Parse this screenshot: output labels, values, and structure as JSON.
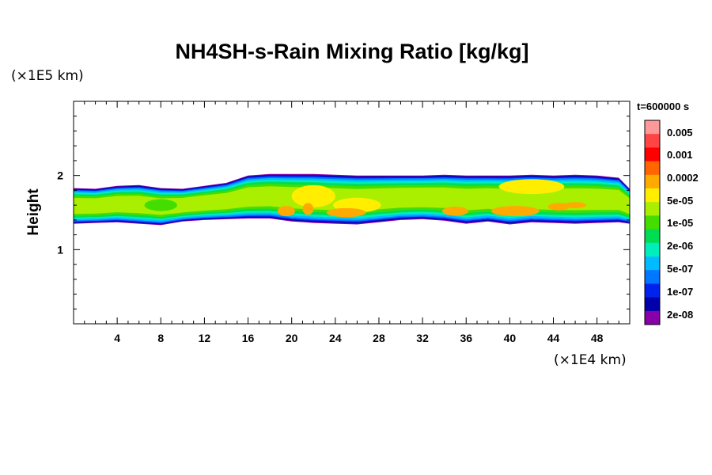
{
  "chart_data": {
    "type": "heatmap",
    "title": "NH4SH-s-Rain Mixing Ratio [kg/kg]",
    "ylabel": "Height",
    "xlabel": "",
    "x_unit": "(×1E4 km)",
    "y_unit": "(×1E5 km)",
    "time_label": "t=600000 s",
    "xlim": [
      0,
      51
    ],
    "ylim": [
      0,
      3
    ],
    "x_ticks": [
      4,
      8,
      12,
      16,
      20,
      24,
      28,
      32,
      36,
      40,
      44,
      48
    ],
    "y_ticks": [
      1,
      2
    ],
    "x_tick_labels": [
      "4",
      "8",
      "12",
      "16",
      "20",
      "24",
      "28",
      "32",
      "36",
      "40",
      "44",
      "48"
    ],
    "y_tick_labels": [
      "1",
      "2"
    ],
    "colorbar": {
      "labels": [
        "0.005",
        "0.001",
        "0.0002",
        "5e-05",
        "1e-05",
        "2e-06",
        "5e-07",
        "1e-07",
        "2e-08"
      ],
      "colors": [
        "#ff9999",
        "#ff4444",
        "#ff0000",
        "#ff6600",
        "#ffaa00",
        "#ffee00",
        "#aaee00",
        "#44dd00",
        "#00dd55",
        "#00eebb",
        "#00bbff",
        "#0077ff",
        "#0022ee",
        "#0000aa",
        "#8800aa"
      ]
    },
    "layer": {
      "x": [
        0,
        2,
        4,
        6,
        8,
        10,
        12,
        14,
        16,
        18,
        20,
        22,
        24,
        26,
        28,
        30,
        32,
        34,
        36,
        38,
        40,
        42,
        44,
        46,
        48,
        50,
        51
      ],
      "top": [
        1.83,
        1.82,
        1.86,
        1.87,
        1.83,
        1.82,
        1.86,
        1.9,
        2.0,
        2.02,
        2.02,
        2.02,
        2.01,
        2.0,
        2.0,
        2.0,
        2.0,
        2.01,
        2.0,
        2.0,
        2.0,
        2.01,
        2.0,
        2.01,
        2.0,
        1.97,
        1.82
      ],
      "bottom": [
        1.35,
        1.36,
        1.37,
        1.35,
        1.33,
        1.38,
        1.4,
        1.41,
        1.42,
        1.42,
        1.38,
        1.36,
        1.35,
        1.34,
        1.37,
        1.4,
        1.41,
        1.39,
        1.35,
        1.38,
        1.34,
        1.37,
        1.36,
        1.35,
        1.36,
        1.37,
        1.35
      ]
    },
    "cores": [
      {
        "x": 22,
        "y": 1.72,
        "rx": 2.0,
        "ry": 0.15,
        "level": "5e-05"
      },
      {
        "x": 26,
        "y": 1.6,
        "rx": 2.2,
        "ry": 0.1,
        "level": "5e-05"
      },
      {
        "x": 19.5,
        "y": 1.52,
        "rx": 0.8,
        "ry": 0.07,
        "level": "0.0002"
      },
      {
        "x": 21.5,
        "y": 1.55,
        "rx": 0.5,
        "ry": 0.08,
        "level": "0.0002"
      },
      {
        "x": 25,
        "y": 1.5,
        "rx": 1.8,
        "ry": 0.06,
        "level": "0.0002"
      },
      {
        "x": 35,
        "y": 1.52,
        "rx": 1.2,
        "ry": 0.06,
        "level": "0.0002"
      },
      {
        "x": 40.5,
        "y": 1.52,
        "rx": 2.2,
        "ry": 0.07,
        "level": "0.0002"
      },
      {
        "x": 44.5,
        "y": 1.58,
        "rx": 1.0,
        "ry": 0.05,
        "level": "0.0002"
      },
      {
        "x": 46,
        "y": 1.6,
        "rx": 1.0,
        "ry": 0.04,
        "level": "0.0002"
      },
      {
        "x": 42,
        "y": 1.85,
        "rx": 3.0,
        "ry": 0.1,
        "level": "5e-05"
      },
      {
        "x": 8,
        "y": 1.6,
        "rx": 1.5,
        "ry": 0.08,
        "level": "1e-05"
      }
    ]
  }
}
